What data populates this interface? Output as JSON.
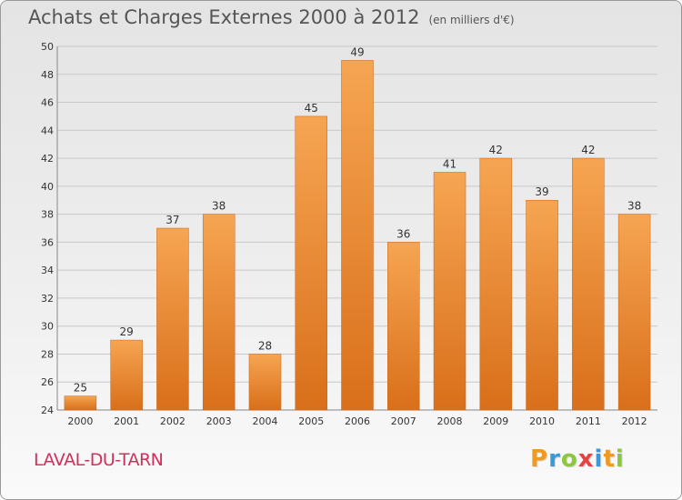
{
  "title": "Achats et Charges Externes 2000 à 2012",
  "subtitle": "(en milliers d'€)",
  "commune": "LAVAL-DU-TARN",
  "logo": {
    "letters": [
      "P",
      "r",
      "o",
      "x",
      "i",
      "t",
      "i"
    ],
    "colors": [
      "#f29a1c",
      "#3a9ad9",
      "#8dc63f",
      "#e8423f",
      "#3a9ad9",
      "#f29a1c",
      "#8dc63f"
    ]
  },
  "chart_data": {
    "type": "bar",
    "categories": [
      "2000",
      "2001",
      "2002",
      "2003",
      "2004",
      "2005",
      "2006",
      "2007",
      "2008",
      "2009",
      "2010",
      "2011",
      "2012"
    ],
    "values": [
      25,
      29,
      37,
      38,
      28,
      45,
      49,
      36,
      41,
      42,
      39,
      42,
      38
    ],
    "title": "Achats et Charges Externes 2000 à 2012",
    "xlabel": "",
    "ylabel": "",
    "ylim": [
      24,
      50
    ],
    "yticks": [
      24,
      26,
      28,
      30,
      32,
      34,
      36,
      38,
      40,
      42,
      44,
      46,
      48,
      50
    ],
    "grid": true,
    "bar_color": "#e8822e"
  }
}
